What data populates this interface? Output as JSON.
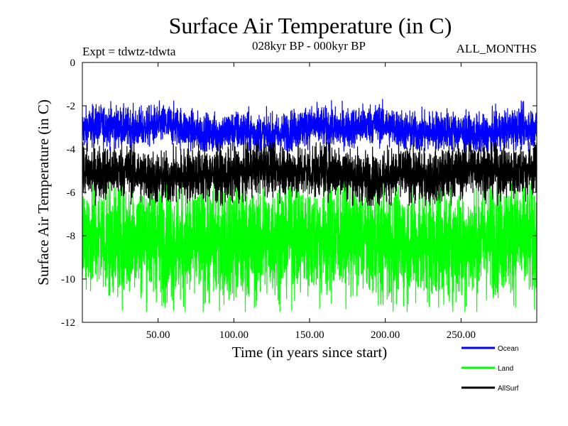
{
  "chart_data": {
    "type": "line",
    "title": "Surface Air Temperature (in C)",
    "subtitle": "028kyr BP - 000kyr BP",
    "left_label": "Expt = tdwtz-tdwta",
    "right_label": "ALL_MONTHS",
    "xlabel": "Time (in years since start)",
    "ylabel": "Surface Air Temperature (in C)",
    "xlim": [
      0,
      300
    ],
    "ylim": [
      -12,
      0
    ],
    "x_ticks": [
      50,
      100,
      150,
      200,
      250
    ],
    "x_tick_labels": [
      "50.00",
      "100.00",
      "150.00",
      "200.00",
      "250.00"
    ],
    "y_ticks": [
      0,
      -2,
      -4,
      -6,
      -8,
      -10,
      -12
    ],
    "y_tick_labels": [
      "0",
      "-2",
      "-4",
      "-6",
      "-8",
      "-10",
      "-12"
    ],
    "grid": false,
    "legend_position": "bottom-right",
    "samples_per_year": 12,
    "series": [
      {
        "name": "Ocean",
        "color": "#0000ff",
        "mean": -3.1,
        "amplitude": 0.45,
        "min": -4.1,
        "max": -1.7
      },
      {
        "name": "Land",
        "color": "#00ff00",
        "mean": -8.2,
        "amplitude": 1.3,
        "min": -11.5,
        "max": -5.3
      },
      {
        "name": "AllSurf",
        "color": "#000000",
        "mean": -5.1,
        "amplitude": 0.6,
        "min": -6.6,
        "max": -3.7
      }
    ]
  }
}
